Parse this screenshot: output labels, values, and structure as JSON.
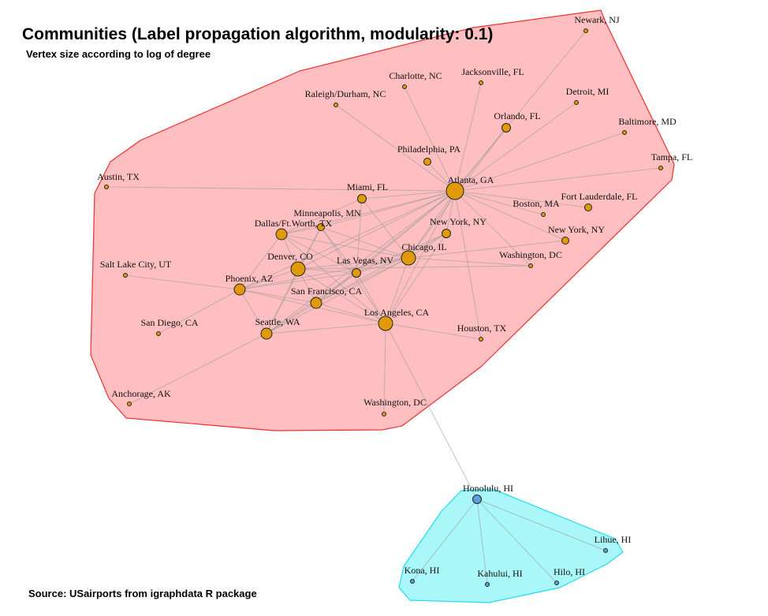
{
  "title": "Communities (Label propagation algorithm, modularity: 0.1)",
  "subtitle": "Vertex size according to log of degree",
  "source": "Source: USairports from igraphdata R package",
  "colors": {
    "mainland_fill": "#ffbfc0",
    "mainland_stroke": "#ee3030",
    "hawaii_fill": "#aaf7fa",
    "hawaii_stroke": "#22dcec",
    "mainland_node": "#e09a05",
    "hawaii_node": "#5a9ee0"
  },
  "communities": [
    {
      "name": "mainland",
      "color_key": "mainland"
    },
    {
      "name": "hawaii",
      "color_key": "hawaii"
    }
  ],
  "nodes": [
    {
      "id": "atl",
      "label": "Atlanta, GA",
      "community": "mainland",
      "size": "xl"
    },
    {
      "id": "chi",
      "label": "Chicago, IL",
      "community": "mainland",
      "size": "l"
    },
    {
      "id": "lax",
      "label": "Los Angeles, CA",
      "community": "mainland",
      "size": "l"
    },
    {
      "id": "den",
      "label": "Denver, CO",
      "community": "mainland",
      "size": "l"
    },
    {
      "id": "dfw",
      "label": "Dallas/Ft.Worth, TX",
      "community": "mainland",
      "size": "m"
    },
    {
      "id": "phx",
      "label": "Phoenix, AZ",
      "community": "mainland",
      "size": "m"
    },
    {
      "id": "sfo",
      "label": "San Francisco, CA",
      "community": "mainland",
      "size": "m"
    },
    {
      "id": "sea",
      "label": "Seattle, WA",
      "community": "mainland",
      "size": "m"
    },
    {
      "id": "las",
      "label": "Las Vegas, NV",
      "community": "mainland",
      "size": "s"
    },
    {
      "id": "jfk",
      "label": "New York, NY",
      "community": "mainland",
      "size": "s"
    },
    {
      "id": "mco",
      "label": "Orlando, FL",
      "community": "mainland",
      "size": "s"
    },
    {
      "id": "mia",
      "label": "Miami, FL",
      "community": "mainland",
      "size": "s"
    },
    {
      "id": "msp",
      "label": "Minneapolis, MN",
      "community": "mainland",
      "size": "xs"
    },
    {
      "id": "phl",
      "label": "Philadelphia, PA",
      "community": "mainland",
      "size": "xs"
    },
    {
      "id": "fll",
      "label": "Fort Lauderdale, FL",
      "community": "mainland",
      "size": "xs"
    },
    {
      "id": "lga",
      "label": "New York, NY",
      "community": "mainland",
      "size": "xs"
    },
    {
      "id": "bos",
      "label": "Boston, MA",
      "community": "mainland",
      "size": "xxs"
    },
    {
      "id": "dca",
      "label": "Washington, DC",
      "community": "mainland",
      "size": "xxs"
    },
    {
      "id": "iah",
      "label": "Houston, TX",
      "community": "mainland",
      "size": "xxs"
    },
    {
      "id": "san",
      "label": "San Diego, CA",
      "community": "mainland",
      "size": "xxs"
    },
    {
      "id": "slc",
      "label": "Salt Lake City, UT",
      "community": "mainland",
      "size": "xxs"
    },
    {
      "id": "aus",
      "label": "Austin, TX",
      "community": "mainland",
      "size": "xxs"
    },
    {
      "id": "anc",
      "label": "Anchorage, AK",
      "community": "mainland",
      "size": "xxs"
    },
    {
      "id": "iad",
      "label": "Washington, DC",
      "community": "mainland",
      "size": "xxs"
    },
    {
      "id": "rdu",
      "label": "Raleigh/Durham, NC",
      "community": "mainland",
      "size": "xxs"
    },
    {
      "id": "clt",
      "label": "Charlotte, NC",
      "community": "mainland",
      "size": "xxs"
    },
    {
      "id": "jax",
      "label": "Jacksonville, FL",
      "community": "mainland",
      "size": "xxs"
    },
    {
      "id": "dtw",
      "label": "Detroit, MI",
      "community": "mainland",
      "size": "xxs"
    },
    {
      "id": "bwi",
      "label": "Baltimore, MD",
      "community": "mainland",
      "size": "xxs"
    },
    {
      "id": "tpa",
      "label": "Tampa, FL",
      "community": "mainland",
      "size": "xxs"
    },
    {
      "id": "ewr",
      "label": "Newark, NJ",
      "community": "mainland",
      "size": "xxs"
    },
    {
      "id": "hnl",
      "label": "Honolulu, HI",
      "community": "hawaii",
      "size": "s"
    },
    {
      "id": "lih",
      "label": "Lihue, HI",
      "community": "hawaii",
      "size": "xxs"
    },
    {
      "id": "koa",
      "label": "Kona, HI",
      "community": "hawaii",
      "size": "xxs"
    },
    {
      "id": "ogg",
      "label": "Kahului, HI",
      "community": "hawaii",
      "size": "xxs"
    },
    {
      "id": "ito",
      "label": "Hilo, HI",
      "community": "hawaii",
      "size": "xxs"
    }
  ],
  "edges": [
    [
      "atl",
      "chi"
    ],
    [
      "atl",
      "lax"
    ],
    [
      "atl",
      "den"
    ],
    [
      "atl",
      "dfw"
    ],
    [
      "atl",
      "phx"
    ],
    [
      "atl",
      "sfo"
    ],
    [
      "atl",
      "las"
    ],
    [
      "atl",
      "jfk"
    ],
    [
      "atl",
      "mco"
    ],
    [
      "atl",
      "mia"
    ],
    [
      "atl",
      "msp"
    ],
    [
      "atl",
      "phl"
    ],
    [
      "atl",
      "fll"
    ],
    [
      "atl",
      "lga"
    ],
    [
      "atl",
      "bos"
    ],
    [
      "atl",
      "dca"
    ],
    [
      "atl",
      "iah"
    ],
    [
      "atl",
      "rdu"
    ],
    [
      "atl",
      "clt"
    ],
    [
      "atl",
      "jax"
    ],
    [
      "atl",
      "dtw"
    ],
    [
      "atl",
      "bwi"
    ],
    [
      "atl",
      "tpa"
    ],
    [
      "atl",
      "ewr"
    ],
    [
      "atl",
      "aus"
    ],
    [
      "atl",
      "sea"
    ],
    [
      "chi",
      "lax"
    ],
    [
      "chi",
      "den"
    ],
    [
      "chi",
      "dfw"
    ],
    [
      "chi",
      "phx"
    ],
    [
      "chi",
      "sfo"
    ],
    [
      "chi",
      "las"
    ],
    [
      "chi",
      "jfk"
    ],
    [
      "chi",
      "mia"
    ],
    [
      "chi",
      "msp"
    ],
    [
      "chi",
      "lga"
    ],
    [
      "chi",
      "dca"
    ],
    [
      "chi",
      "sea"
    ],
    [
      "chi",
      "mco"
    ],
    [
      "lax",
      "den"
    ],
    [
      "lax",
      "dfw"
    ],
    [
      "lax",
      "phx"
    ],
    [
      "lax",
      "sfo"
    ],
    [
      "lax",
      "sea"
    ],
    [
      "lax",
      "las"
    ],
    [
      "lax",
      "jfk"
    ],
    [
      "lax",
      "iah"
    ],
    [
      "lax",
      "iad"
    ],
    [
      "lax",
      "hnl"
    ],
    [
      "lax",
      "msp"
    ],
    [
      "den",
      "dfw"
    ],
    [
      "den",
      "phx"
    ],
    [
      "den",
      "sfo"
    ],
    [
      "den",
      "sea"
    ],
    [
      "den",
      "las"
    ],
    [
      "den",
      "msp"
    ],
    [
      "den",
      "dca"
    ],
    [
      "dfw",
      "phx"
    ],
    [
      "dfw",
      "las"
    ],
    [
      "dfw",
      "msp"
    ],
    [
      "dfw",
      "mia"
    ],
    [
      "phx",
      "sfo"
    ],
    [
      "phx",
      "sea"
    ],
    [
      "phx",
      "san"
    ],
    [
      "phx",
      "slc"
    ],
    [
      "phx",
      "las"
    ],
    [
      "sfo",
      "sea"
    ],
    [
      "sfo",
      "las"
    ],
    [
      "sfo",
      "jfk"
    ],
    [
      "sea",
      "anc"
    ],
    [
      "sea",
      "las"
    ],
    [
      "sea",
      "msp"
    ],
    [
      "las",
      "jfk"
    ],
    [
      "las",
      "msp"
    ],
    [
      "las",
      "mia"
    ],
    [
      "hnl",
      "lih"
    ],
    [
      "hnl",
      "koa"
    ],
    [
      "hnl",
      "ogg"
    ],
    [
      "hnl",
      "ito"
    ]
  ]
}
